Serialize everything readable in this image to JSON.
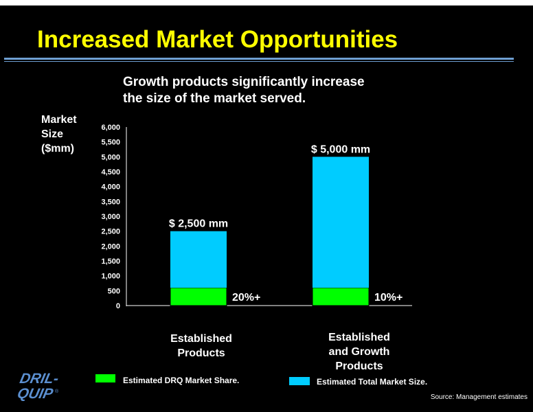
{
  "title": "Increased Market Opportunities",
  "subtitle_lines": [
    "Growth products significantly increase",
    "the size of the market served."
  ],
  "y_label_lines": [
    "Market",
    "Size",
    "($mm)"
  ],
  "colors": {
    "title": "#ffff00",
    "share": "#00ff00",
    "total": "#00ccff",
    "rule": "#6e9fd2"
  },
  "chart_data": {
    "type": "bar",
    "stacked": true,
    "categories": [
      [
        "Established",
        "Products"
      ],
      [
        "Established",
        "and Growth",
        "Products"
      ]
    ],
    "series": [
      {
        "name": "Estimated DRQ Market Share.",
        "color": "#00ff00",
        "values": [
          600,
          600
        ]
      },
      {
        "name": "Estimated Total Market Size.",
        "color": "#00ccff",
        "values": [
          1900,
          4400
        ]
      }
    ],
    "totals": [
      2500,
      5000
    ],
    "total_labels": [
      "$ 2,500 mm",
      "$ 5,000 mm"
    ],
    "share_labels": [
      "20%+",
      "10%+"
    ],
    "ylim": [
      0,
      6000
    ],
    "yticks": [
      "0",
      "500",
      "1,000",
      "1,500",
      "2,000",
      "2,500",
      "3,000",
      "3,500",
      "4,000",
      "4,500",
      "5,000",
      "5,500",
      "6,000"
    ],
    "legend": [
      {
        "label": "Estimated DRQ Market Share.",
        "color": "#00ff00"
      },
      {
        "label": "Estimated Total Market Size.",
        "color": "#00ccff"
      }
    ]
  },
  "logo_lines": [
    "DRIL-",
    "QUIP",
    "®"
  ],
  "source": "Source: Management estimates"
}
